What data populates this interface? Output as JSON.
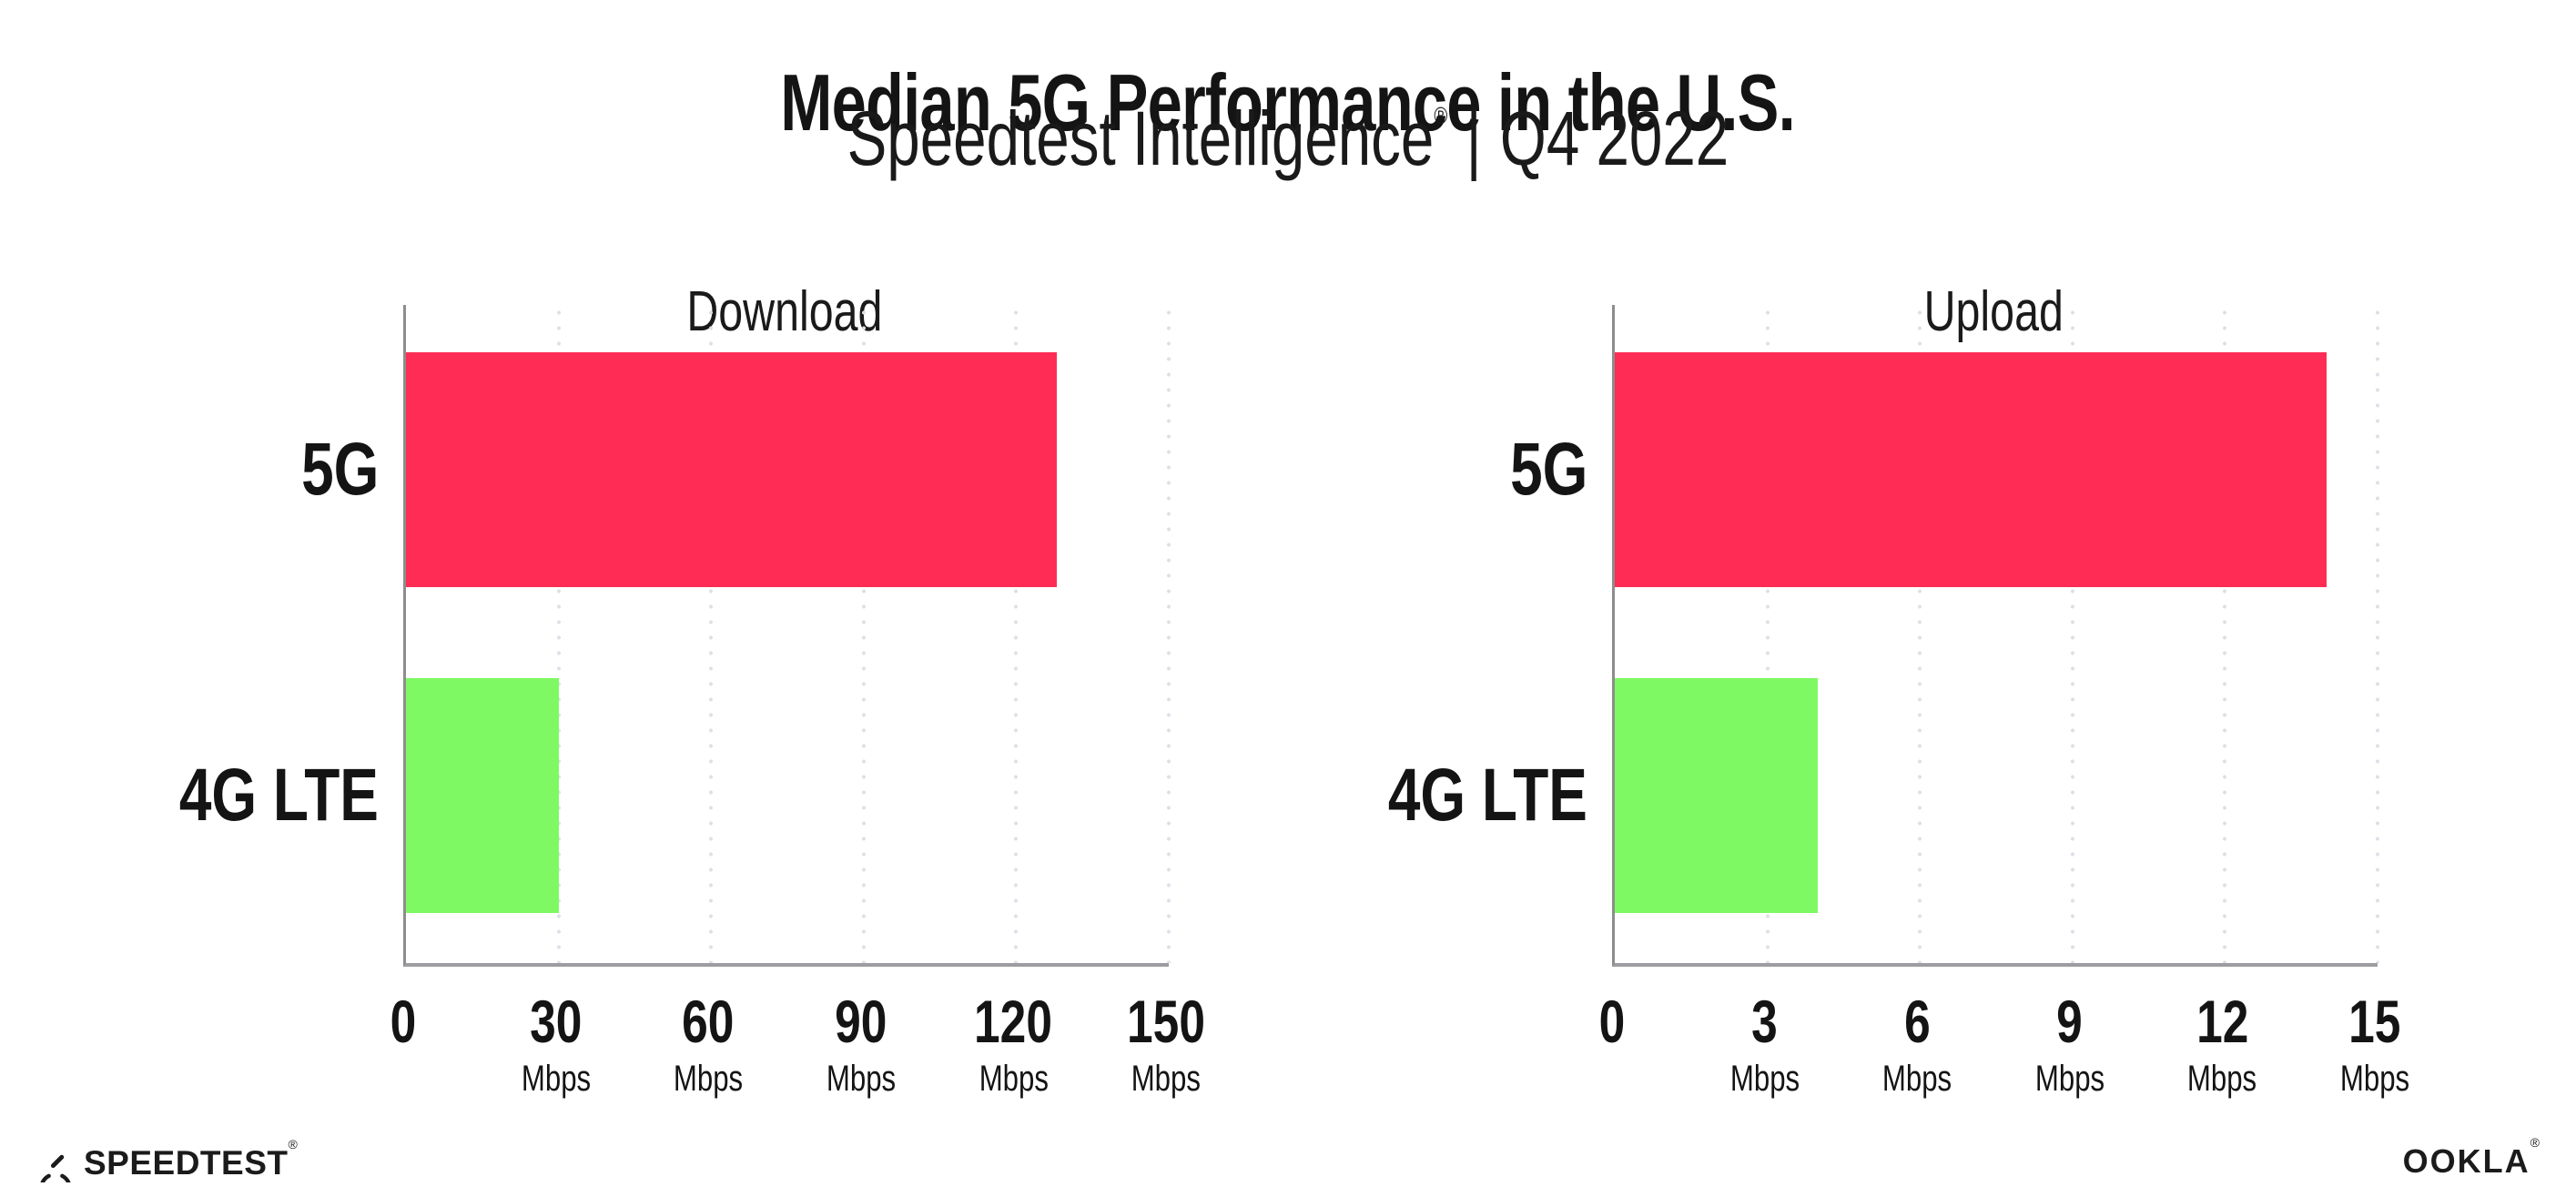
{
  "header": {
    "title": "Median 5G Performance in the U.S.",
    "subtitle_brand": "Speedtest Intelligence",
    "subtitle_registered": "®",
    "subtitle_separator": "|",
    "subtitle_period": "Q4 2022"
  },
  "chart_data": [
    {
      "type": "bar",
      "orientation": "horizontal",
      "title": "Download",
      "categories": [
        "5G",
        "4G LTE"
      ],
      "values": [
        128,
        30
      ],
      "unit": "Mbps",
      "xlim": [
        0,
        150
      ],
      "xticks": [
        0,
        30,
        60,
        90,
        120,
        150
      ],
      "grid": "vertical-dotted",
      "legend": "none",
      "bar_colors": [
        "#ff2d55",
        "#7ef963"
      ]
    },
    {
      "type": "bar",
      "orientation": "horizontal",
      "title": "Upload",
      "categories": [
        "5G",
        "4G LTE"
      ],
      "values": [
        14,
        4
      ],
      "unit": "Mbps",
      "xlim": [
        0,
        15
      ],
      "xticks": [
        0,
        3,
        6,
        9,
        12,
        15
      ],
      "grid": "vertical-dotted",
      "legend": "none",
      "bar_colors": [
        "#ff2d55",
        "#7ef963"
      ]
    }
  ],
  "colors": {
    "bar_5g": "#ff2d55",
    "bar_4g_lte": "#7ef963",
    "axis_line": "#9d9da1",
    "gridline": "#dfdfe9",
    "text": "#141414",
    "background": "#ffffff"
  },
  "footer": {
    "speedtest_wordmark": "SPEEDTEST",
    "speedtest_trademark": "®",
    "ookla_wordmark": "OOKLA",
    "ookla_trademark": "®"
  }
}
